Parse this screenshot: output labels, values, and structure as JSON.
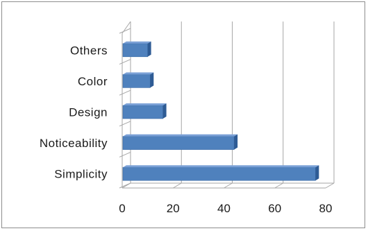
{
  "chart_data": {
    "type": "bar",
    "orientation": "horizontal",
    "style": "3d",
    "categories": [
      "Others",
      "Color",
      "Design",
      "Noticeability",
      "Simplicity"
    ],
    "values": [
      10,
      11,
      16,
      44,
      76
    ],
    "xlim": [
      0,
      80
    ],
    "xticks": [
      0,
      20,
      40,
      60,
      80
    ],
    "grid": true,
    "legend": "none",
    "title": "",
    "xlabel": "",
    "ylabel": "",
    "colors": {
      "bar": "#4f81bd",
      "bar_top": "#7aa0d6",
      "bar_side": "#2e5b94",
      "grid": "#a6a6a6"
    }
  }
}
